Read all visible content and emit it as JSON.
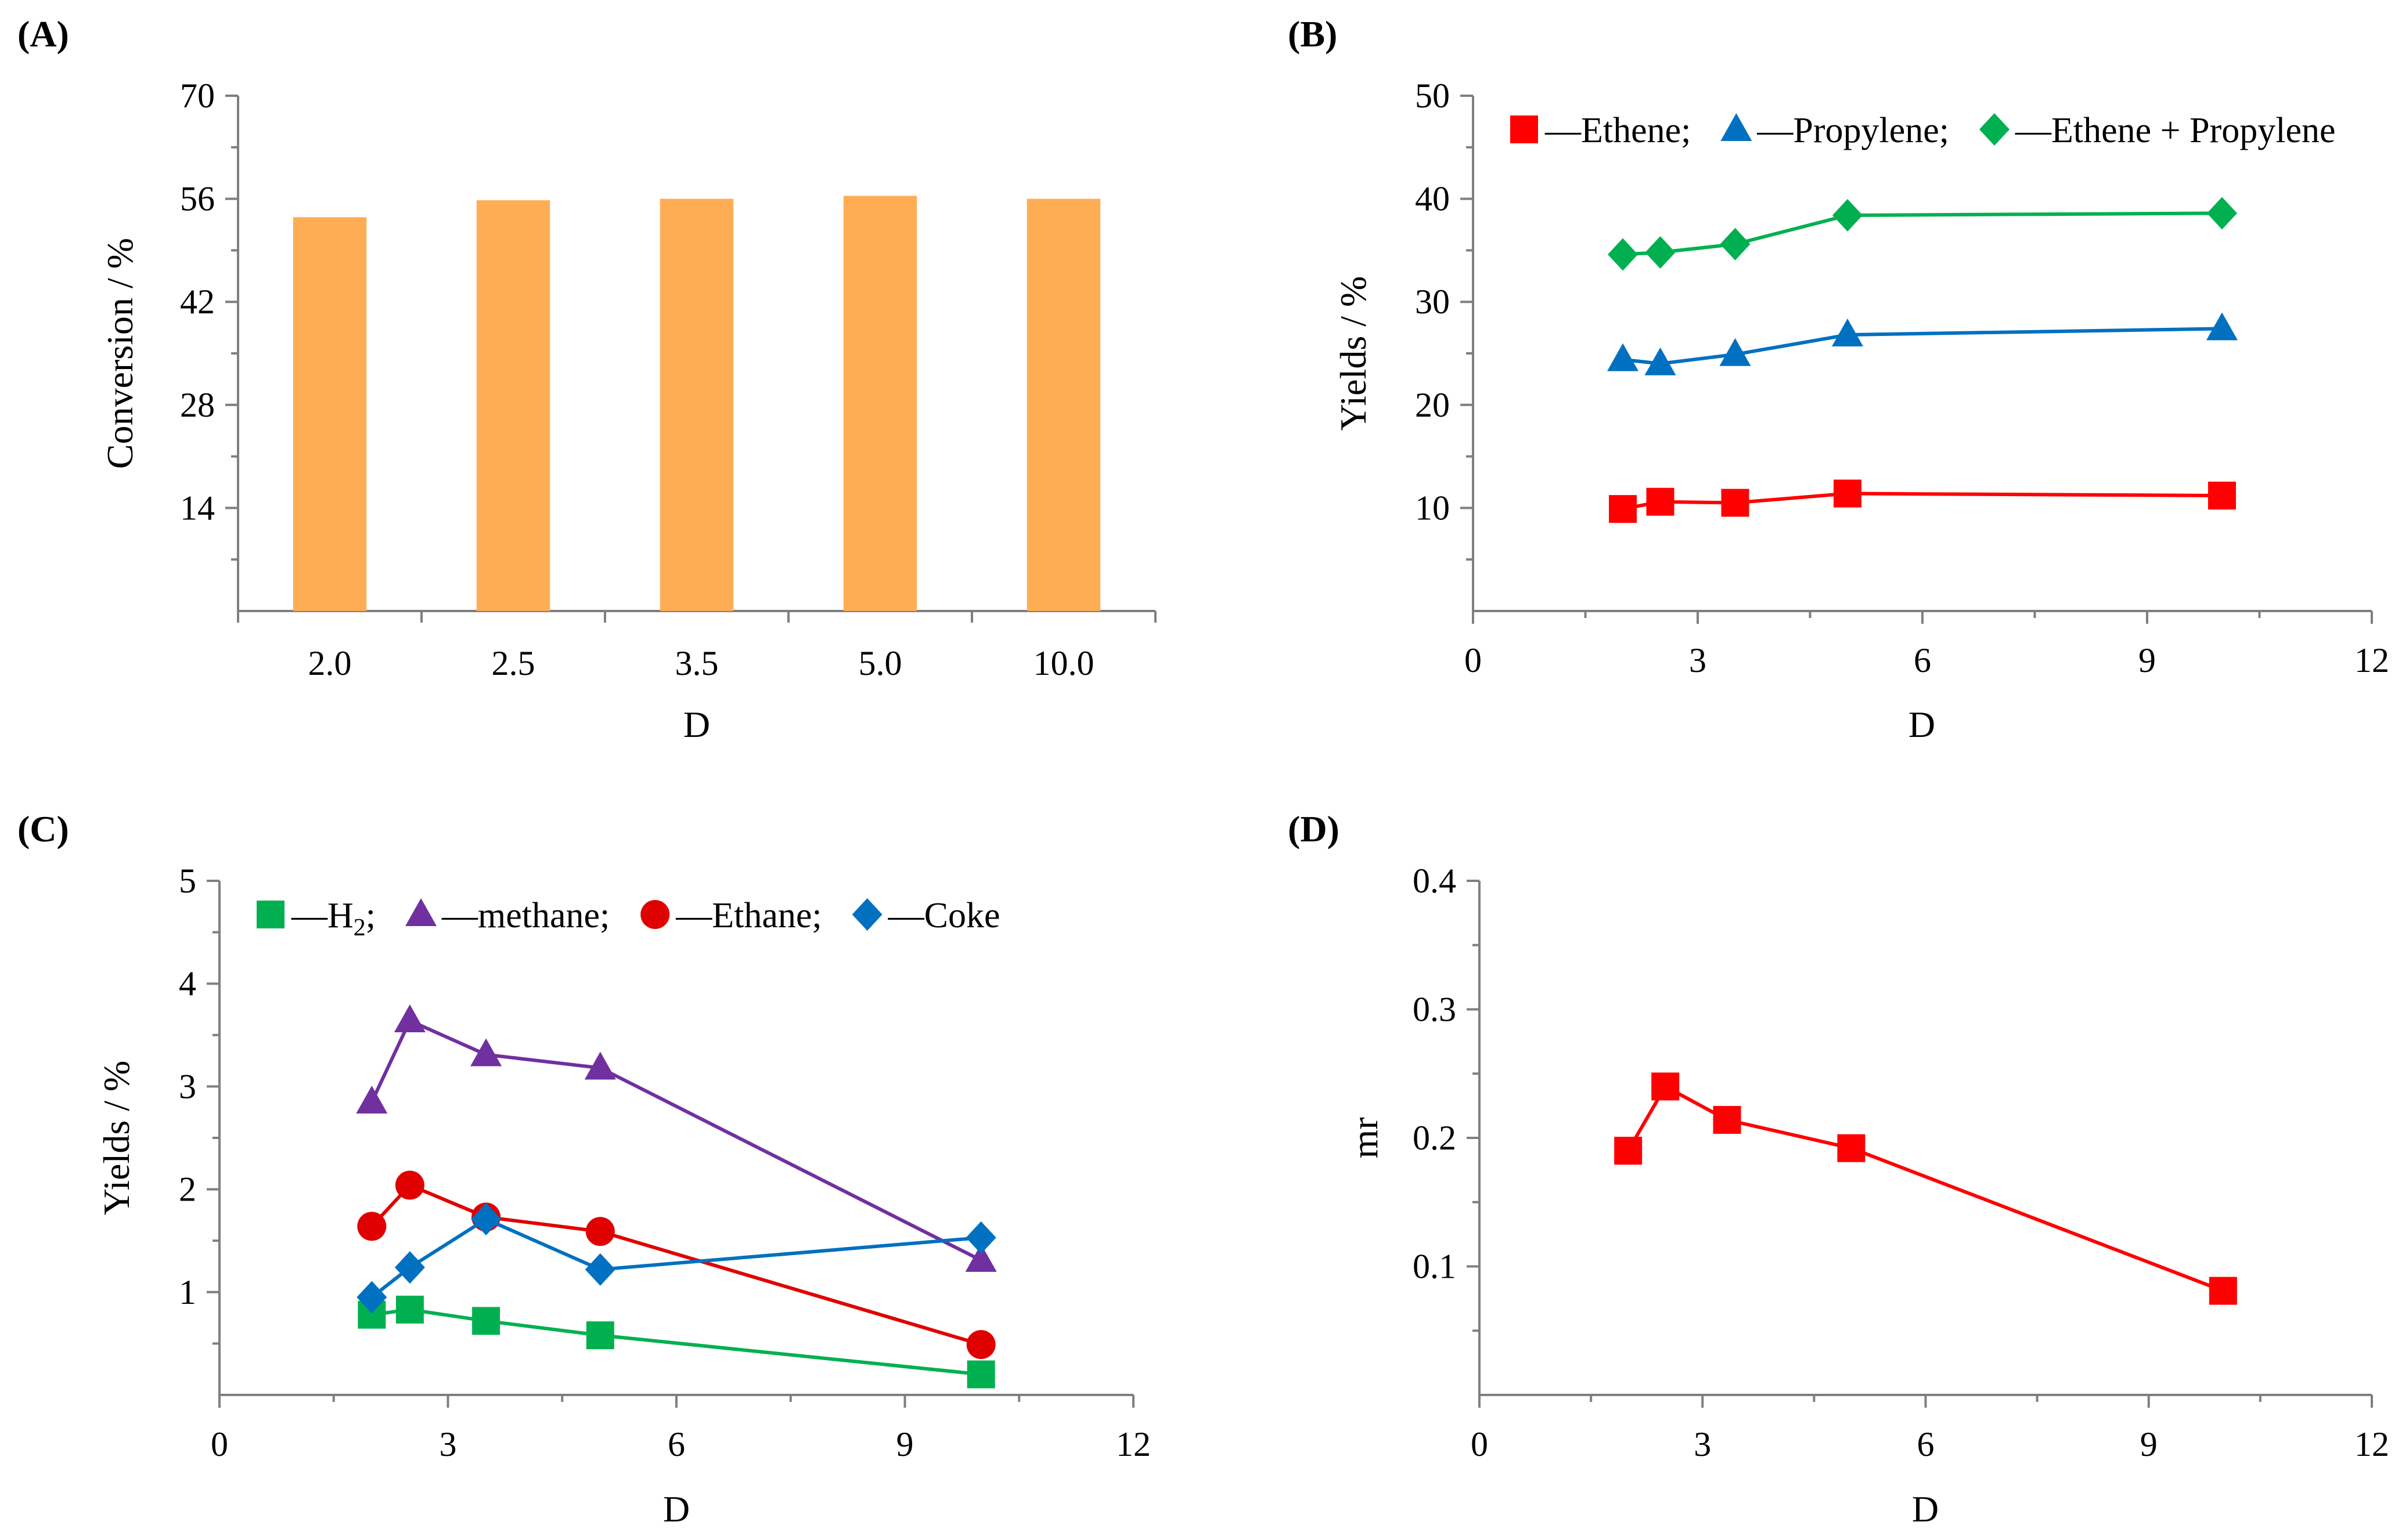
{
  "chart_data": [
    {
      "panel": "(A)",
      "type": "bar",
      "categories": [
        "2.0",
        "2.5",
        "3.5",
        "5.0",
        "10.0"
      ],
      "values": [
        53.5,
        55.8,
        56.0,
        56.4,
        56.0
      ],
      "xlabel": "D",
      "ylabel": "Conversion / %",
      "ylim": [
        0,
        70
      ],
      "yticks": [
        14,
        28,
        42,
        56,
        70
      ],
      "bar_color": "#FFAD55"
    },
    {
      "panel": "(B)",
      "type": "line",
      "xlabel": "D",
      "ylabel": "Yields / %",
      "xlim": [
        0,
        12
      ],
      "ylim": [
        0,
        50
      ],
      "xticks": [
        0,
        3,
        6,
        9,
        12
      ],
      "yticks": [
        10,
        20,
        30,
        40,
        50
      ],
      "legend_location": "top",
      "series": [
        {
          "name": "—Ethene;",
          "marker": "square",
          "color": "#FF0000",
          "x": [
            2.0,
            2.5,
            3.5,
            5.0,
            10.0
          ],
          "y": [
            9.9,
            10.6,
            10.5,
            11.4,
            11.2
          ]
        },
        {
          "name": "—Propylene;",
          "marker": "triangle",
          "color": "#0070C0",
          "x": [
            2.0,
            2.5,
            3.5,
            5.0,
            10.0
          ],
          "y": [
            24.4,
            24.0,
            24.9,
            26.8,
            27.4
          ]
        },
        {
          "name": "—Ethene + Propylene",
          "marker": "diamond",
          "color": "#00B050",
          "x": [
            2.0,
            2.5,
            3.5,
            5.0,
            10.0
          ],
          "y": [
            34.6,
            34.8,
            35.6,
            38.4,
            38.6
          ]
        }
      ]
    },
    {
      "panel": "(C)",
      "type": "line",
      "xlabel": "D",
      "ylabel": "Yields / %",
      "xlim": [
        0,
        12
      ],
      "ylim": [
        0,
        5
      ],
      "xticks": [
        0,
        3,
        6,
        9,
        12
      ],
      "yticks": [
        1,
        2,
        3,
        4,
        5
      ],
      "legend_location": "top",
      "series": [
        {
          "name": "—H",
          "name_sub": "2",
          "name_suffix": ";",
          "marker": "square",
          "color": "#00B050",
          "x": [
            2.0,
            2.5,
            3.5,
            5.0,
            10.0
          ],
          "y": [
            0.78,
            0.83,
            0.72,
            0.58,
            0.2
          ]
        },
        {
          "name": "—methane;",
          "marker": "triangle",
          "color": "#7030A0",
          "x": [
            2.0,
            2.5,
            3.5,
            5.0,
            10.0
          ],
          "y": [
            2.85,
            3.64,
            3.31,
            3.18,
            1.31
          ]
        },
        {
          "name": "—Ethane;",
          "marker": "circle",
          "color": "#E00000",
          "x": [
            2.0,
            2.5,
            3.5,
            5.0,
            10.0
          ],
          "y": [
            1.64,
            2.04,
            1.73,
            1.59,
            0.49
          ]
        },
        {
          "name": "—Coke",
          "marker": "diamond",
          "color": "#0070C0",
          "x": [
            2.0,
            2.5,
            3.5,
            5.0,
            10.0
          ],
          "y": [
            0.95,
            1.24,
            1.71,
            1.22,
            1.53
          ]
        }
      ]
    },
    {
      "panel": "(D)",
      "type": "line",
      "xlabel": "D",
      "ylabel": "mr",
      "xlim": [
        0,
        12
      ],
      "ylim": [
        0,
        0.4
      ],
      "xticks": [
        0,
        3,
        6,
        9,
        12
      ],
      "yticks": [
        0.1,
        0.2,
        0.3,
        0.4
      ],
      "ytick_labels": [
        "0.1",
        "0.2",
        "0.3",
        "0.4"
      ],
      "series": [
        {
          "name": "mr",
          "marker": "square",
          "color": "#FF0000",
          "x": [
            2.0,
            2.5,
            3.33,
            5.0,
            10.0
          ],
          "y": [
            0.19,
            0.24,
            0.214,
            0.192,
            0.081
          ]
        }
      ]
    }
  ]
}
